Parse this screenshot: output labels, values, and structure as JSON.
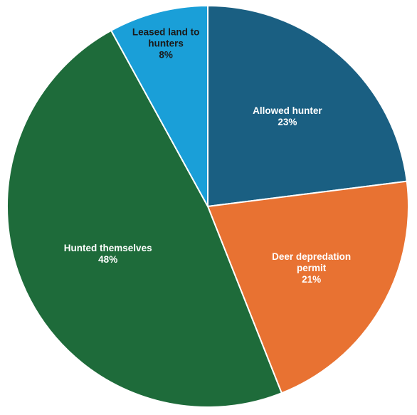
{
  "chart_data": {
    "type": "pie",
    "title": "",
    "start_angle_deg": 0,
    "direction": "clockwise",
    "slices": [
      {
        "name": "Allowed hunter",
        "value": 23,
        "value_label": "23%",
        "color": "#1a5f82",
        "label_color": "#ffffff",
        "label_lines": [
          "Allowed hunter",
          "23%"
        ]
      },
      {
        "name": "Deer depredation permit",
        "value": 21,
        "value_label": "21%",
        "color": "#e87232",
        "label_color": "#ffffff",
        "label_lines": [
          "Deer depredation",
          "permit",
          "21%"
        ]
      },
      {
        "name": "Hunted themselves",
        "value": 48,
        "value_label": "48%",
        "color": "#1e6b3a",
        "label_color": "#ffffff",
        "label_lines": [
          "Hunted themselves",
          "48%"
        ]
      },
      {
        "name": "Leased land to hunters",
        "value": 8,
        "value_label": "8%",
        "color": "#1a9fd8",
        "label_color": "#1a1a1a",
        "label_lines": [
          "Leased land to",
          "hunters",
          "8%"
        ]
      }
    ]
  }
}
